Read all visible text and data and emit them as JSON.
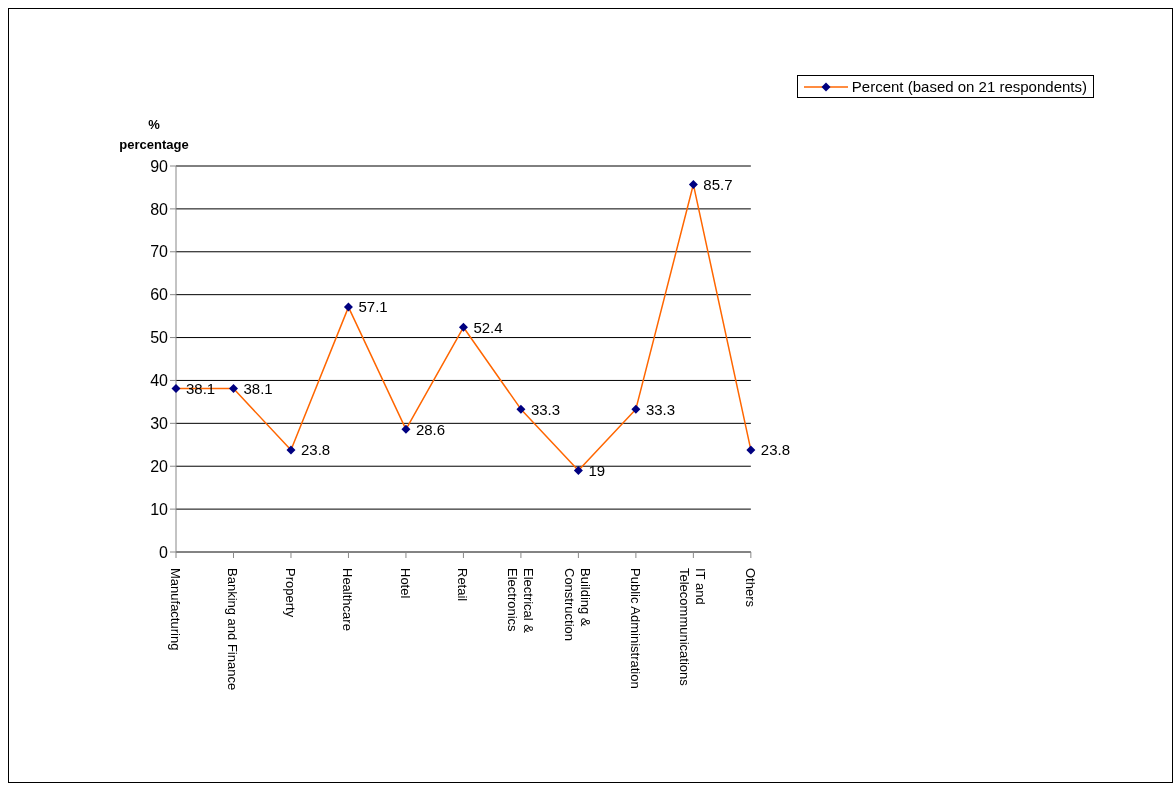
{
  "chart_data": {
    "type": "line",
    "ylabel": "% percentage",
    "categories": [
      "Manufacturing",
      "Banking and Finance",
      "Property",
      "Healthcare",
      "Hotel",
      "Retail",
      "Electrical & Electronics",
      "Building & Construction",
      "Public Administration",
      "IT and Telecommunications",
      "Others"
    ],
    "series": [
      {
        "name": "Percent (based on 21 respondents)",
        "color": "#ff6600",
        "values": [
          38.1,
          38.1,
          23.8,
          57.1,
          28.6,
          52.4,
          33.3,
          19,
          33.3,
          85.7,
          23.8
        ]
      }
    ],
    "ylim": [
      0,
      90
    ],
    "yticks": [
      0,
      10,
      20,
      30,
      40,
      50,
      60,
      70,
      80,
      90
    ],
    "grid": "y",
    "legend": "top right",
    "marker": "diamond",
    "line_style": "solid",
    "data_labels": true
  }
}
